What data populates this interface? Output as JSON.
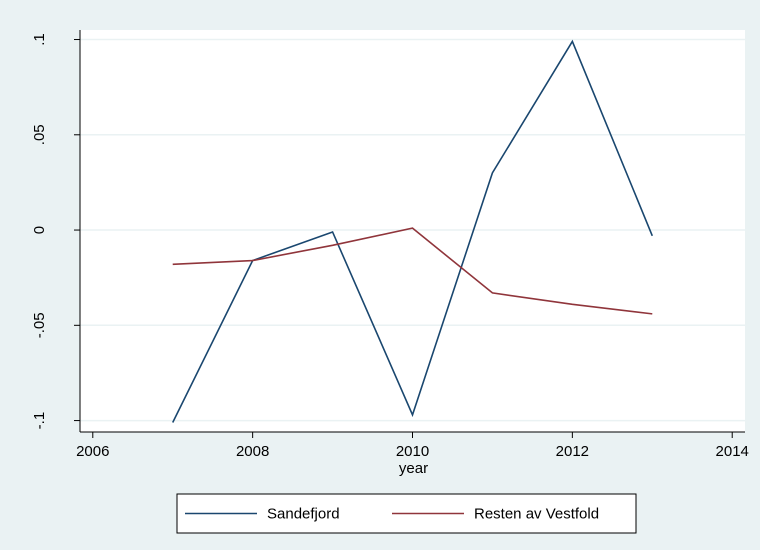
{
  "chart_data": {
    "type": "line",
    "x_label": "year",
    "x": [
      2007,
      2008,
      2009,
      2010,
      2011,
      2012,
      2013
    ],
    "series": [
      {
        "name": "Sandefjord",
        "color": "#1a476f",
        "values": [
          -0.101,
          -0.016,
          -0.001,
          -0.097,
          0.03,
          0.099,
          -0.003
        ]
      },
      {
        "name": "Resten av Vestfold",
        "color": "#90353b",
        "values": [
          -0.018,
          -0.016,
          -0.008,
          0.001,
          -0.033,
          -0.039,
          -0.044
        ]
      }
    ],
    "xlim": [
      2005.84,
      2014.16
    ],
    "xticks": [
      2006,
      2008,
      2010,
      2012,
      2014
    ],
    "ylim": [
      -0.106,
      0.105
    ],
    "yticks": [
      {
        "value": -0.1,
        "label": "-.1"
      },
      {
        "value": -0.05,
        "label": "-.05"
      },
      0,
      {
        "value": 0.05,
        "label": ".05"
      },
      {
        "value": 0.1,
        "label": ".1"
      }
    ],
    "grid": true,
    "legend": "bottom"
  }
}
